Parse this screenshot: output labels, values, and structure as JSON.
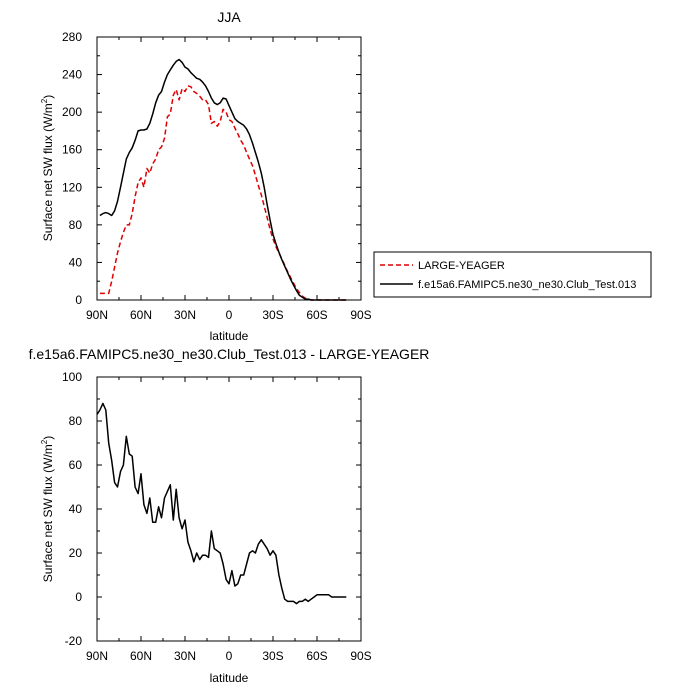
{
  "chart_data": [
    {
      "type": "line",
      "title": "JJA",
      "xlabel": "latitude",
      "ylabel": "Surface net SW flux (W/m",
      "ylabel_sup": "2",
      "ylabel_close": ")",
      "xlim": [
        90,
        -90
      ],
      "ylim": [
        0,
        280
      ],
      "x_ticks": [
        90,
        60,
        30,
        0,
        -30,
        -60,
        -90
      ],
      "x_tick_labels": [
        "90N",
        "60N",
        "30N",
        "0",
        "30S",
        "60S",
        "90S"
      ],
      "y_ticks": [
        0,
        40,
        80,
        120,
        160,
        200,
        240,
        280
      ],
      "y_tick_labels": [
        "0",
        "40",
        "80",
        "120",
        "160",
        "200",
        "240",
        "280"
      ],
      "legend_position": "right",
      "series": [
        {
          "name": "LARGE-YEAGER",
          "color": "#e00000",
          "dash": "dashed",
          "x": [
            88,
            86,
            84,
            82,
            80,
            78,
            76,
            74,
            72,
            70,
            68,
            66,
            64,
            62,
            60,
            58,
            56,
            54,
            52,
            50,
            48,
            46,
            44,
            42,
            40,
            38,
            36,
            34,
            32,
            30,
            28,
            26,
            24,
            22,
            20,
            18,
            16,
            14,
            12,
            10,
            8,
            6,
            4,
            2,
            0,
            -2,
            -4,
            -6,
            -8,
            -10,
            -12,
            -14,
            -16,
            -18,
            -20,
            -22,
            -24,
            -26,
            -28,
            -30,
            -32,
            -34,
            -36,
            -38,
            -40,
            -42,
            -44,
            -46,
            -48,
            -50,
            -52,
            -54,
            -56,
            -58,
            -60,
            -62,
            -64,
            -66,
            -68,
            -70,
            -72,
            -74,
            -76,
            -78,
            -80
          ],
          "values": [
            7,
            7,
            7,
            7,
            20,
            35,
            50,
            62,
            72,
            80,
            80,
            92,
            110,
            125,
            130,
            120,
            140,
            135,
            145,
            150,
            160,
            163,
            172,
            195,
            198,
            218,
            224,
            213,
            225,
            222,
            228,
            227,
            222,
            220,
            217,
            213,
            213,
            208,
            188,
            190,
            185,
            190,
            203,
            200,
            192,
            190,
            183,
            177,
            170,
            165,
            157,
            150,
            143,
            133,
            122,
            112,
            100,
            88,
            75,
            65,
            57,
            50,
            44,
            37,
            30,
            24,
            18,
            12,
            8,
            4,
            2,
            1,
            0,
            0,
            0,
            0,
            0,
            0,
            0,
            0,
            0,
            0,
            0,
            0,
            0
          ]
        },
        {
          "name": "f.e15a6.FAMIPC5.ne30_ne30.Club_Test.013",
          "color": "#000000",
          "dash": "solid",
          "x": [
            88,
            86,
            84,
            82,
            80,
            78,
            76,
            74,
            72,
            70,
            68,
            66,
            64,
            62,
            60,
            58,
            56,
            54,
            52,
            50,
            48,
            46,
            44,
            42,
            40,
            38,
            36,
            34,
            32,
            30,
            28,
            26,
            24,
            22,
            20,
            18,
            16,
            14,
            12,
            10,
            8,
            6,
            4,
            2,
            0,
            -2,
            -4,
            -6,
            -8,
            -10,
            -12,
            -14,
            -16,
            -18,
            -20,
            -22,
            -24,
            -26,
            -28,
            -30,
            -32,
            -34,
            -36,
            -38,
            -40,
            -42,
            -44,
            -46,
            -48,
            -50,
            -52,
            -54,
            -56,
            -58,
            -60,
            -62,
            -64,
            -66,
            -68,
            -70,
            -72,
            -74,
            -76,
            -78,
            -80
          ],
          "values": [
            90,
            92,
            93,
            92,
            90,
            95,
            105,
            120,
            135,
            150,
            157,
            162,
            170,
            180,
            181,
            181,
            182,
            188,
            198,
            210,
            218,
            222,
            232,
            240,
            245,
            250,
            254,
            256,
            253,
            248,
            246,
            242,
            239,
            236,
            235,
            232,
            228,
            222,
            215,
            210,
            208,
            210,
            215,
            214,
            207,
            200,
            193,
            190,
            188,
            186,
            182,
            176,
            167,
            157,
            147,
            135,
            120,
            102,
            85,
            70,
            60,
            51,
            43,
            36,
            29,
            22,
            16,
            10,
            5,
            3,
            1,
            1,
            0,
            0,
            0,
            0,
            0,
            0,
            0,
            0,
            0,
            0,
            0,
            0,
            0
          ]
        }
      ]
    },
    {
      "type": "line",
      "title": "f.e15a6.FAMIPC5.ne30_ne30.Club_Test.013 - LARGE-YEAGER",
      "xlabel": "latitude",
      "ylabel": "Surface net SW flux (W/m",
      "ylabel_sup": "2",
      "ylabel_close": ")",
      "xlim": [
        90,
        -90
      ],
      "ylim": [
        -20,
        100
      ],
      "x_ticks": [
        90,
        60,
        30,
        0,
        -30,
        -60,
        -90
      ],
      "x_tick_labels": [
        "90N",
        "60N",
        "30N",
        "0",
        "30S",
        "60S",
        "90S"
      ],
      "y_ticks": [
        -20,
        0,
        20,
        40,
        60,
        80,
        100
      ],
      "y_tick_labels": [
        "-20",
        "0",
        "20",
        "40",
        "60",
        "80",
        "100"
      ],
      "series": [
        {
          "color": "#000000",
          "dash": "solid",
          "x": [
            90,
            88,
            86,
            84,
            82,
            80,
            78,
            76,
            74,
            72,
            70,
            68,
            66,
            64,
            62,
            60,
            58,
            56,
            54,
            52,
            50,
            48,
            46,
            44,
            42,
            40,
            38,
            36,
            34,
            32,
            30,
            28,
            26,
            24,
            22,
            20,
            18,
            16,
            14,
            12,
            10,
            8,
            6,
            4,
            2,
            0,
            -2,
            -4,
            -6,
            -8,
            -10,
            -12,
            -14,
            -16,
            -18,
            -20,
            -22,
            -24,
            -26,
            -28,
            -30,
            -32,
            -34,
            -36,
            -38,
            -40,
            -42,
            -44,
            -46,
            -48,
            -50,
            -52,
            -54,
            -56,
            -58,
            -60,
            -62,
            -64,
            -66,
            -68,
            -70,
            -72,
            -74,
            -76,
            -78,
            -80
          ],
          "values": [
            83,
            85,
            88,
            85,
            70,
            62,
            52,
            50,
            57,
            60,
            73,
            65,
            64,
            50,
            47,
            56,
            42,
            38,
            45,
            34,
            34,
            41,
            36,
            45,
            48,
            51,
            35,
            49,
            36,
            31,
            35,
            25,
            21,
            16,
            20,
            17,
            19,
            19,
            18,
            30,
            22,
            21,
            20,
            15,
            8,
            6,
            12,
            5,
            6,
            10,
            10,
            15,
            20,
            21,
            20,
            24,
            26,
            24,
            22,
            19,
            21,
            19,
            10,
            4,
            -1,
            -2,
            -2,
            -2,
            -3,
            -2,
            -2,
            -1,
            -2,
            -1,
            0,
            1,
            1,
            1,
            1,
            1,
            0,
            0,
            0,
            0,
            0,
            0
          ]
        }
      ]
    }
  ]
}
